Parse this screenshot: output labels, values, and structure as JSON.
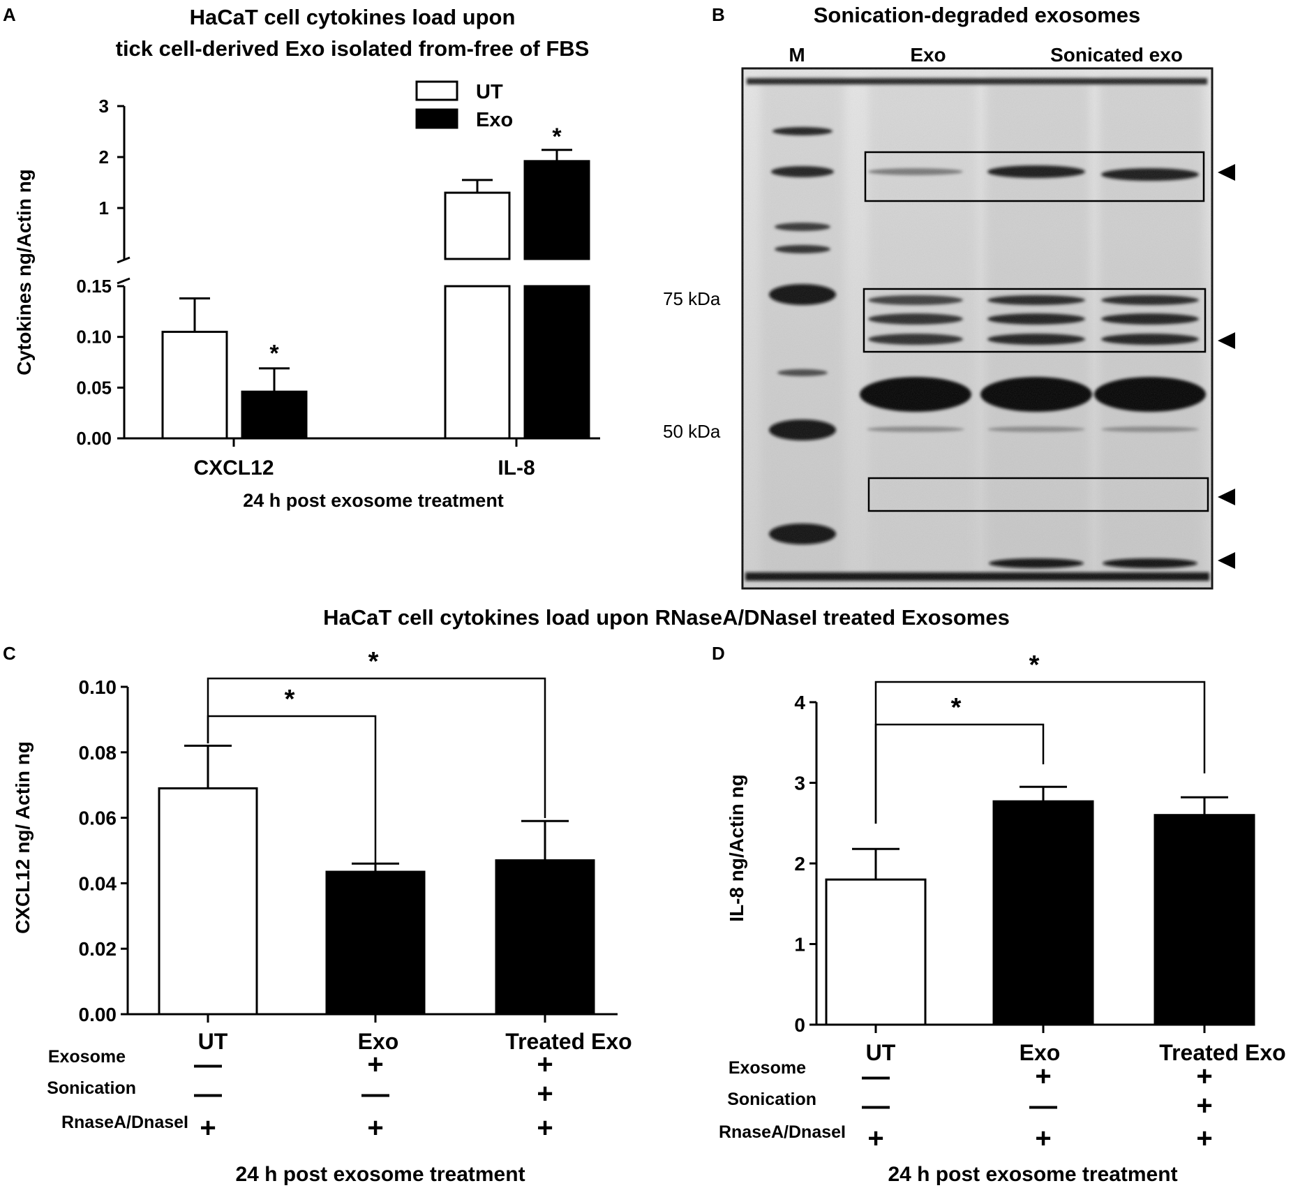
{
  "panels": {
    "A": {
      "letter": "A",
      "title_line1": "HaCaT cell cytokines load upon",
      "title_line2": "tick cell-derived Exo isolated from-free of FBS",
      "ylabel": "Cytokines ng/Actin ng",
      "xlabel": "24 h post exosome treatment",
      "legend": [
        "UT",
        "Exo"
      ]
    },
    "B": {
      "letter": "B",
      "title": "Sonication-degraded exosomes",
      "lane_labels": [
        "M",
        "Exo",
        "Sonicated exo"
      ],
      "marker_labels": [
        "75 kDa",
        "50 kDa"
      ]
    },
    "shared_title_CD": "HaCaT cell cytokines load upon RNaseA/DNaseI treated Exosomes",
    "C": {
      "letter": "C",
      "ylabel": "CXCL12 ng/ Actin ng",
      "xlabel": "24 h post exosome treatment",
      "row_labels": [
        "Exosome",
        "Sonication",
        "RnaseA/DnaseI"
      ],
      "conditions": [
        [
          "—",
          "—",
          "+"
        ],
        [
          "+",
          "—",
          "+"
        ],
        [
          "+",
          "+",
          "+"
        ]
      ]
    },
    "D": {
      "letter": "D",
      "ylabel": "IL-8 ng/Actin ng",
      "xlabel": "24 h post exosome treatment",
      "row_labels": [
        "Exosome",
        "Sonication",
        "RnaseA/DnaseI"
      ],
      "conditions": [
        [
          "—",
          "—",
          "+"
        ],
        [
          "+",
          "—",
          "+"
        ],
        [
          "+",
          "+",
          "+"
        ]
      ]
    }
  },
  "significance_marker": "*",
  "chart_data": [
    {
      "panel": "A",
      "type": "bar",
      "title": "HaCaT cell cytokines load upon tick cell-derived Exo isolated from-free of FBS",
      "xlabel": "24 h post exosome treatment",
      "ylabel": "Cytokines ng/Actin ng",
      "categories": [
        "CXCL12",
        "IL-8"
      ],
      "series": [
        {
          "name": "UT",
          "fill": "#ffffff",
          "values": [
            0.105,
            1.3
          ],
          "errors": [
            0.033,
            0.25
          ]
        },
        {
          "name": "Exo",
          "fill": "#000000",
          "values": [
            0.046,
            1.92
          ],
          "errors": [
            0.023,
            0.22
          ]
        }
      ],
      "y_axis_break": {
        "lower_range": [
          0,
          0.15
        ],
        "upper_range": [
          0,
          3
        ]
      },
      "lower_ticks": [
        "0.00",
        "0.05",
        "0.10",
        "0.15"
      ],
      "upper_ticks": [
        "1",
        "2",
        "3"
      ],
      "significance": [
        {
          "category": "CXCL12",
          "series": "Exo",
          "label": "*"
        },
        {
          "category": "IL-8",
          "series": "Exo",
          "label": "*"
        }
      ],
      "legend": "top-right",
      "grid": false
    },
    {
      "panel": "C",
      "type": "bar",
      "xlabel": "24 h post exosome treatment",
      "ylabel": "CXCL12 ng/ Actin ng",
      "categories": [
        "UT",
        "Exo",
        "Treated Exo"
      ],
      "values": [
        0.069,
        0.0435,
        0.047
      ],
      "errors": [
        0.013,
        0.0025,
        0.012
      ],
      "fills": [
        "#ffffff",
        "#000000",
        "#000000"
      ],
      "ylim": [
        0,
        0.1
      ],
      "yticks": [
        "0.00",
        "0.02",
        "0.04",
        "0.06",
        "0.08",
        "0.10"
      ],
      "significance": [
        {
          "from": "UT",
          "to": "Exo",
          "label": "*"
        },
        {
          "from": "UT",
          "to": "Treated Exo",
          "label": "*"
        }
      ],
      "grid": false
    },
    {
      "panel": "D",
      "type": "bar",
      "xlabel": "24 h post exosome treatment",
      "ylabel": "IL-8 ng/Actin ng",
      "categories": [
        "UT",
        "Exo",
        "Treated Exo"
      ],
      "values": [
        1.8,
        2.77,
        2.6
      ],
      "errors": [
        0.38,
        0.18,
        0.22
      ],
      "fills": [
        "#ffffff",
        "#000000",
        "#000000"
      ],
      "ylim": [
        0,
        4
      ],
      "yticks": [
        "0",
        "1",
        "2",
        "3",
        "4"
      ],
      "significance": [
        {
          "from": "UT",
          "to": "Exo",
          "label": "*"
        },
        {
          "from": "UT",
          "to": "Treated Exo",
          "label": "*"
        }
      ],
      "grid": false
    }
  ]
}
